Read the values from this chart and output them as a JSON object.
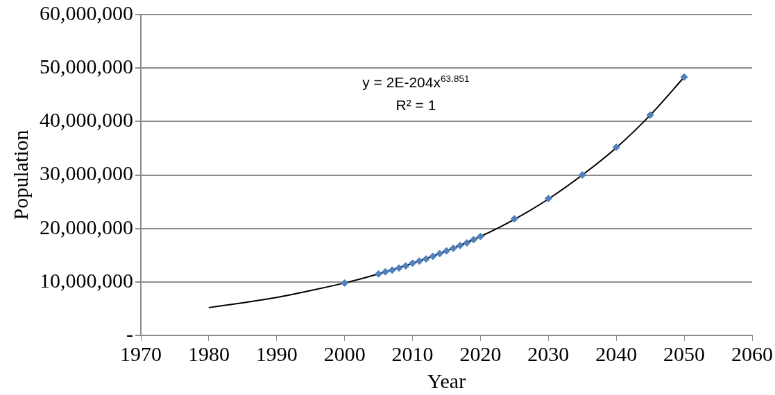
{
  "chart_data": {
    "type": "scatter",
    "xlabel": "Year",
    "ylabel": "Population",
    "xlim": [
      1970,
      2060
    ],
    "xticks": [
      1970,
      1980,
      1990,
      2000,
      2010,
      2020,
      2030,
      2040,
      2050,
      2060
    ],
    "ylim": [
      0,
      60000000
    ],
    "yticks": [
      {
        "value": 0,
        "label": "-"
      },
      {
        "value": 10000000,
        "label": "10,000,000"
      },
      {
        "value": 20000000,
        "label": "20,000,000"
      },
      {
        "value": 30000000,
        "label": "30,000,000"
      },
      {
        "value": 40000000,
        "label": "40,000,000"
      },
      {
        "value": 50000000,
        "label": "50,000,000"
      },
      {
        "value": 60000000,
        "label": "60,000,000"
      }
    ],
    "grid": "y",
    "legend": false,
    "annotations": [
      "y = 2E-204x$^{63.851}$",
      "R² = 1"
    ],
    "series": [
      {
        "type": "scatter",
        "marker": "diamond",
        "color": "#4f81bd",
        "x": [
          2000,
          2005,
          2006,
          2007,
          2008,
          2009,
          2010,
          2011,
          2012,
          2013,
          2014,
          2015,
          2016,
          2017,
          2018,
          2019,
          2020,
          2025,
          2030,
          2035,
          2040,
          2045,
          2050
        ],
        "values": [
          9800000,
          11500000,
          11900000,
          12200000,
          12600000,
          13000000,
          13500000,
          13900000,
          14300000,
          14800000,
          15300000,
          15800000,
          16300000,
          16800000,
          17300000,
          17900000,
          18500000,
          21800000,
          25600000,
          30000000,
          35200000,
          41200000,
          48300000
        ]
      },
      {
        "type": "line",
        "marker": "none",
        "color": "#000000",
        "x": [
          1980,
          1985,
          1990,
          1995,
          2000,
          2005,
          2010,
          2015,
          2020,
          2025,
          2030,
          2035,
          2040,
          2045,
          2050
        ],
        "values": [
          5200000,
          6100000,
          7100000,
          8400000,
          9800000,
          11500000,
          13500000,
          15800000,
          18500000,
          21700000,
          25500000,
          30000000,
          35100000,
          41200000,
          48300000
        ]
      }
    ]
  }
}
